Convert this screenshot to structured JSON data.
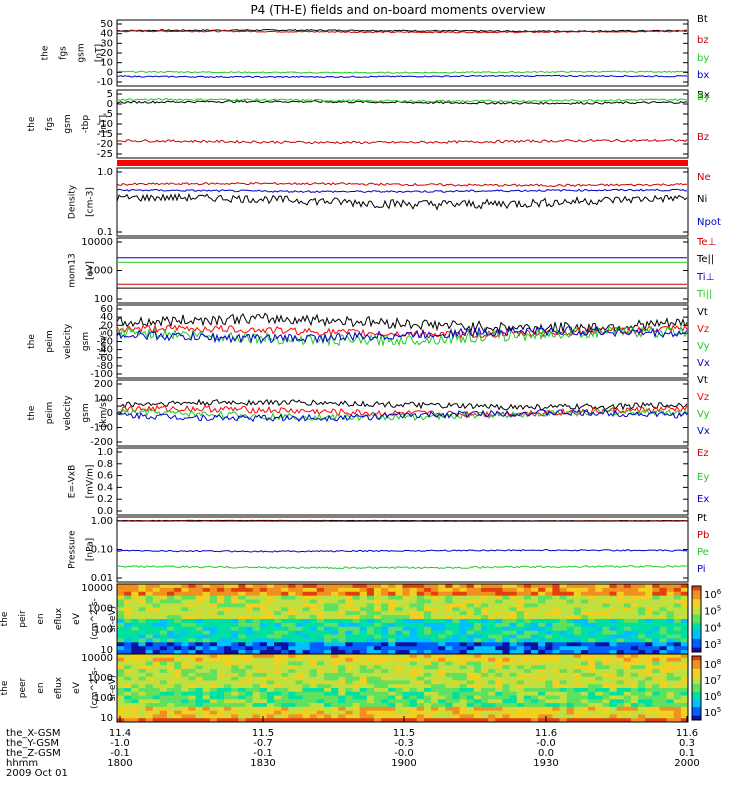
{
  "title": "P4 (TH-E) fields and on-board moments overview",
  "colors": {
    "black": "#000000",
    "red": "#cc0000",
    "green": "#22cc22",
    "blue": "#0000cc",
    "bright_red": "#ff0000"
  },
  "footer": {
    "rows": [
      {
        "label": "the_X-GSM",
        "values": [
          "11.4",
          "11.5",
          "11.5",
          "11.6",
          "11.6"
        ]
      },
      {
        "label": "the_Y-GSM",
        "values": [
          "-1.0",
          "-0.7",
          "-0.3",
          "-0.0",
          "0.3"
        ]
      },
      {
        "label": "the_Z-GSM",
        "values": [
          "-0.1",
          "-0.1",
          "-0.0",
          "0.0",
          "0.1"
        ]
      },
      {
        "label": "hhmm",
        "values": [
          "1800",
          "1830",
          "1900",
          "1930",
          "2000"
        ]
      }
    ],
    "date": "2009 Oct 01"
  },
  "chart_data": [
    {
      "type": "line",
      "ylabel": [
        "the",
        "fgs",
        "gsm",
        "[nT]"
      ],
      "yticks": [
        "50",
        "40",
        "30",
        "20",
        "10",
        "0",
        "-10"
      ],
      "ylim": [
        -12,
        50
      ],
      "scale": "linear",
      "series": [
        {
          "name": "Bt",
          "color": "#000000",
          "level": 40,
          "noise": 0.6
        },
        {
          "name": "bz",
          "color": "#cc0000",
          "level": 39,
          "noise": 0.6
        },
        {
          "name": "by",
          "color": "#22cc22",
          "level": 1,
          "noise": 0.6
        },
        {
          "name": "bx",
          "color": "#0000cc",
          "level": -3,
          "noise": 0.6
        }
      ]
    },
    {
      "type": "line",
      "ylabel": [
        "the",
        "fgs",
        "gsm",
        "-tbp",
        "[nT]"
      ],
      "yticks": [
        "5",
        "0",
        "-5",
        "-10",
        "-15",
        "-20",
        "-25"
      ],
      "ylim": [
        -28,
        5
      ],
      "scale": "linear",
      "series": [
        {
          "name": "Bx",
          "color": "#000000",
          "level": -1,
          "noise": 0.5
        },
        {
          "name": "By",
          "color": "#22cc22",
          "level": 0,
          "noise": 0.5
        },
        {
          "name": "Bz",
          "color": "#cc0000",
          "level": -20,
          "noise": 0.6
        }
      ]
    },
    {
      "type": "line",
      "ylabel": [
        "Density",
        "[cm-3]"
      ],
      "yticks": [
        "1.0",
        "0.1"
      ],
      "ylim": [
        0.1,
        1.3
      ],
      "scale": "log",
      "series": [
        {
          "name": "Ne",
          "color": "#cc0000",
          "level": 0.7,
          "noise": 0.03
        },
        {
          "name": "Ni",
          "color": "#000000",
          "level": 0.38,
          "noise": 0.06
        },
        {
          "name": "Npot",
          "color": "#0000cc",
          "level": 0.55,
          "noise": 0.02
        }
      ]
    },
    {
      "type": "line",
      "ylabel": [
        "mom13",
        "[eV]"
      ],
      "yticks": [
        "10000",
        "1000",
        "100"
      ],
      "ylim": [
        100,
        12000
      ],
      "scale": "log",
      "series": [
        {
          "name": "Te⊥",
          "color": "#cc0000",
          "level": 400,
          "noise": 0.05
        },
        {
          "name": "Te||",
          "color": "#000000",
          "level": 300,
          "noise": 0.05
        },
        {
          "name": "Ti⊥",
          "color": "#0000cc",
          "level": 2800,
          "noise": 0.05
        },
        {
          "name": "Ti||",
          "color": "#22cc22",
          "level": 2000,
          "noise": 0.05
        }
      ]
    },
    {
      "type": "line",
      "ylabel": [
        "the",
        "peim",
        "velocity",
        "gsm",
        "[km/s]"
      ],
      "yticks": [
        "60",
        "40",
        "20",
        "0",
        "-20",
        "-40",
        "-60",
        "-80",
        "-100"
      ],
      "ylim": [
        -100,
        60
      ],
      "scale": "linear",
      "series": [
        {
          "name": "Vt",
          "color": "#000000",
          "level": 20,
          "noise": 12
        },
        {
          "name": "Vz",
          "color": "#ff0000",
          "level": 2,
          "noise": 8
        },
        {
          "name": "Vy",
          "color": "#22cc22",
          "level": -8,
          "noise": 12
        },
        {
          "name": "Vx",
          "color": "#0000cc",
          "level": -5,
          "noise": 10
        }
      ]
    },
    {
      "type": "line",
      "ylabel": [
        "the",
        "peim",
        "velocity",
        "gsm",
        "[km/s]"
      ],
      "yticks": [
        "200",
        "100",
        "0",
        "-100",
        "-200"
      ],
      "ylim": [
        -200,
        200
      ],
      "scale": "linear",
      "series": [
        {
          "name": "Vt",
          "color": "#000000",
          "level": 50,
          "noise": 18
        },
        {
          "name": "Vz",
          "color": "#ff0000",
          "level": 10,
          "noise": 20
        },
        {
          "name": "Vy",
          "color": "#22cc22",
          "level": -10,
          "noise": 20
        },
        {
          "name": "Vx",
          "color": "#0000cc",
          "level": -15,
          "noise": 20
        }
      ]
    },
    {
      "type": "line",
      "ylabel": [
        "E=-VxB",
        "[mV/m]"
      ],
      "yticks": [
        "1.0",
        "0.8",
        "0.6",
        "0.4",
        "0.2",
        "0.0"
      ],
      "ylim": [
        0,
        1
      ],
      "scale": "linear",
      "series": [
        {
          "name": "Ez",
          "color": "#cc0000",
          "level": null,
          "noise": 0
        },
        {
          "name": "Ey",
          "color": "#22cc22",
          "level": null,
          "noise": 0
        },
        {
          "name": "Ex",
          "color": "#0000cc",
          "level": null,
          "noise": 0
        }
      ]
    },
    {
      "type": "line",
      "ylabel": [
        "Pressure",
        "[nPa]"
      ],
      "yticks": [
        "1.00",
        "0.10",
        "0.01"
      ],
      "ylim": [
        0.01,
        1.2
      ],
      "scale": "log",
      "series": [
        {
          "name": "Pt",
          "color": "#000000",
          "level": 0.92,
          "noise": 0.01
        },
        {
          "name": "Pb",
          "color": "#cc0000",
          "level": 0.88,
          "noise": 0.01
        },
        {
          "name": "Pe",
          "color": "#22cc22",
          "level": 0.03,
          "noise": 0.002
        },
        {
          "name": "Pi",
          "color": "#0000cc",
          "level": 0.1,
          "noise": 0.005
        }
      ]
    },
    {
      "type": "heatmap",
      "ylabel": [
        "the",
        "peir",
        "en",
        "eflux",
        "eV",
        "(cm^2-s-",
        "sr-eV)"
      ],
      "yticks": [
        "10000",
        "1000",
        "100",
        "10"
      ],
      "colorbar_ticks": [
        "10^6",
        "10^5",
        "10^4",
        "10^3"
      ]
    },
    {
      "type": "heatmap",
      "ylabel": [
        "the",
        "peer",
        "en",
        "eflux",
        "eV",
        "(cm^2-s-",
        "sr-eV)"
      ],
      "yticks": [
        "10000",
        "1000",
        "100",
        "10"
      ],
      "colorbar_ticks": [
        "10^8",
        "10^7",
        "10^6",
        "10^5"
      ]
    }
  ]
}
